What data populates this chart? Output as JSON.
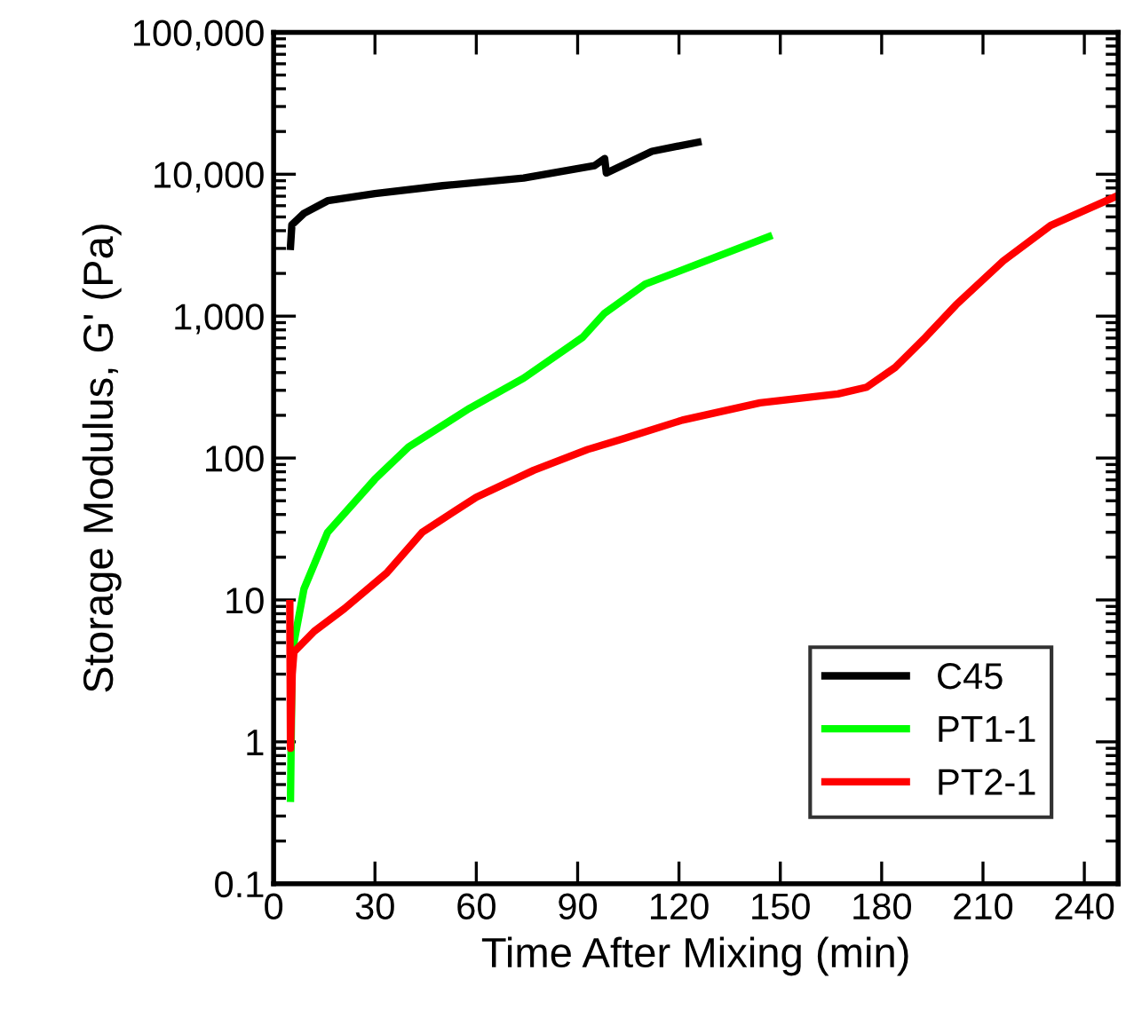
{
  "chart_data": {
    "type": "line",
    "xlabel": "Time After Mixing (min)",
    "ylabel": "Storage Modulus, G' (Pa)",
    "log": "y",
    "legend": "lower right",
    "grid": false,
    "xlim": [
      0,
      250
    ],
    "xticks": [
      0,
      30,
      60,
      90,
      120,
      150,
      180,
      210,
      240
    ],
    "ylim": [
      0.1,
      100000
    ],
    "yticks": [
      {
        "value": 0.1,
        "label": "0.1"
      },
      {
        "value": 1,
        "label": "1"
      },
      {
        "value": 10,
        "label": "10"
      },
      {
        "value": 100,
        "label": "100"
      },
      {
        "value": 1000,
        "label": "1,000"
      },
      {
        "value": 10000,
        "label": "10,000"
      },
      {
        "value": 100000,
        "label": "100,000"
      }
    ],
    "series": [
      {
        "name": "C45",
        "color": "#000000",
        "x": [
          5,
          5.4,
          9,
          16,
          30,
          50,
          74,
          95,
          98,
          98.5,
          112,
          125.6
        ],
        "values": [
          3100,
          4400,
          5300,
          6500,
          7300,
          8300,
          9400,
          11500,
          12900,
          10200,
          14500,
          16800
        ]
      },
      {
        "name": "PT1-1",
        "color": "#00ff00",
        "x": [
          5,
          5.5,
          9,
          16,
          30,
          40,
          58,
          74,
          91.5,
          98,
          110,
          128,
          146.6
        ],
        "values": [
          0.4,
          4.3,
          12,
          30,
          71,
          120,
          224,
          365,
          710,
          1050,
          1680,
          2450,
          3630
        ]
      },
      {
        "name": "PT2-1",
        "color": "#ff0000",
        "x": [
          4.8,
          5,
          5.5,
          6,
          12,
          21,
          33.5,
          44,
          60,
          77,
          93,
          104,
          121,
          144,
          167,
          175.6,
          184,
          193,
          202,
          216,
          230,
          250
        ],
        "values": [
          9.4,
          0.9,
          3,
          4.3,
          6,
          8.7,
          15.5,
          30,
          53,
          82,
          115,
          138,
          185,
          245,
          283,
          316,
          435,
          710,
          1200,
          2450,
          4350,
          7080
        ]
      }
    ]
  }
}
